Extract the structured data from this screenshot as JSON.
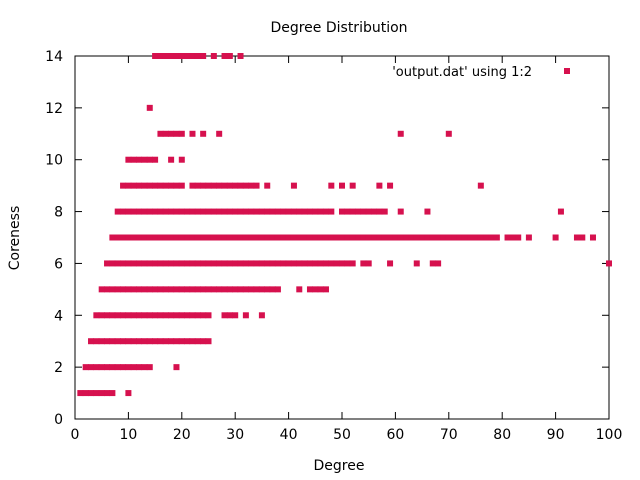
{
  "chart_data": {
    "type": "scatter",
    "title": "Degree Distribution",
    "xlabel": "Degree",
    "ylabel": "Coreness",
    "xlim": [
      0,
      100
    ],
    "ylim": [
      0,
      14
    ],
    "xticks": [
      0,
      10,
      20,
      30,
      40,
      50,
      60,
      70,
      80,
      90,
      100
    ],
    "yticks": [
      0,
      2,
      4,
      6,
      8,
      10,
      12,
      14
    ],
    "grid": false,
    "legend": {
      "position": "top-right"
    },
    "series": [
      {
        "name": "'output.dat' using 1:2",
        "color": "#d6114e",
        "marker": "filled-square",
        "rows": [
          {
            "y": 1,
            "x": [
              1,
              2,
              3,
              4,
              5,
              6,
              7,
              10
            ]
          },
          {
            "y": 2,
            "x": [
              2,
              3,
              4,
              5,
              6,
              7,
              8,
              9,
              10,
              11,
              12,
              13,
              14,
              19
            ]
          },
          {
            "y": 3,
            "x": [
              3,
              4,
              5,
              6,
              7,
              8,
              9,
              10,
              11,
              12,
              13,
              14,
              15,
              16,
              17,
              18,
              19,
              20,
              21,
              22,
              23,
              24,
              25
            ]
          },
          {
            "y": 4,
            "x": [
              4,
              5,
              6,
              7,
              8,
              9,
              10,
              11,
              12,
              13,
              14,
              15,
              16,
              17,
              18,
              19,
              20,
              21,
              22,
              23,
              24,
              25,
              28,
              29,
              30,
              32,
              35
            ]
          },
          {
            "y": 5,
            "x": [
              5,
              6,
              7,
              8,
              9,
              10,
              11,
              12,
              13,
              14,
              15,
              16,
              17,
              18,
              19,
              20,
              21,
              22,
              23,
              24,
              25,
              26,
              27,
              28,
              29,
              30,
              31,
              32,
              33,
              34,
              35,
              36,
              37,
              38,
              42,
              44,
              45,
              46,
              47
            ]
          },
          {
            "y": 6,
            "x": [
              6,
              7,
              8,
              9,
              10,
              11,
              12,
              13,
              14,
              15,
              16,
              17,
              18,
              19,
              20,
              21,
              22,
              23,
              24,
              25,
              26,
              27,
              28,
              29,
              30,
              31,
              32,
              33,
              34,
              35,
              36,
              37,
              38,
              39,
              40,
              41,
              42,
              43,
              44,
              45,
              46,
              47,
              48,
              49,
              50,
              51,
              52,
              54,
              55,
              59,
              64,
              67,
              68,
              100
            ]
          },
          {
            "y": 7,
            "x": [
              7,
              8,
              9,
              10,
              11,
              12,
              13,
              14,
              15,
              16,
              17,
              18,
              19,
              20,
              21,
              22,
              23,
              24,
              25,
              26,
              27,
              28,
              29,
              30,
              31,
              32,
              33,
              34,
              35,
              36,
              37,
              38,
              39,
              40,
              41,
              42,
              43,
              44,
              45,
              46,
              47,
              48,
              49,
              50,
              51,
              52,
              53,
              54,
              55,
              56,
              57,
              58,
              59,
              60,
              61,
              62,
              63,
              64,
              65,
              66,
              67,
              68,
              69,
              70,
              71,
              72,
              73,
              74,
              75,
              76,
              77,
              78,
              79,
              81,
              82,
              83,
              85,
              90,
              94,
              95,
              97
            ]
          },
          {
            "y": 8,
            "x": [
              8,
              9,
              10,
              11,
              12,
              13,
              14,
              15,
              16,
              17,
              18,
              19,
              20,
              21,
              22,
              23,
              24,
              25,
              26,
              27,
              28,
              29,
              30,
              31,
              32,
              33,
              34,
              35,
              36,
              37,
              38,
              39,
              40,
              41,
              42,
              43,
              44,
              45,
              46,
              47,
              48,
              50,
              51,
              52,
              53,
              54,
              55,
              56,
              57,
              58,
              61,
              66,
              91
            ]
          },
          {
            "y": 9,
            "x": [
              9,
              10,
              11,
              12,
              13,
              14,
              15,
              16,
              17,
              18,
              19,
              20,
              22,
              23,
              24,
              25,
              26,
              27,
              28,
              29,
              30,
              31,
              32,
              33,
              34,
              36,
              41,
              48,
              50,
              52,
              57,
              59,
              76
            ]
          },
          {
            "y": 10,
            "x": [
              10,
              11,
              12,
              13,
              14,
              15,
              18,
              20
            ]
          },
          {
            "y": 11,
            "x": [
              16,
              17,
              18,
              19,
              20,
              22,
              24,
              27,
              61,
              70
            ]
          },
          {
            "y": 12,
            "x": [
              14
            ]
          },
          {
            "y": 14,
            "x": [
              15,
              16,
              17,
              18,
              19,
              20,
              21,
              22,
              23,
              24,
              26,
              28,
              29,
              31
            ]
          }
        ]
      }
    ]
  }
}
